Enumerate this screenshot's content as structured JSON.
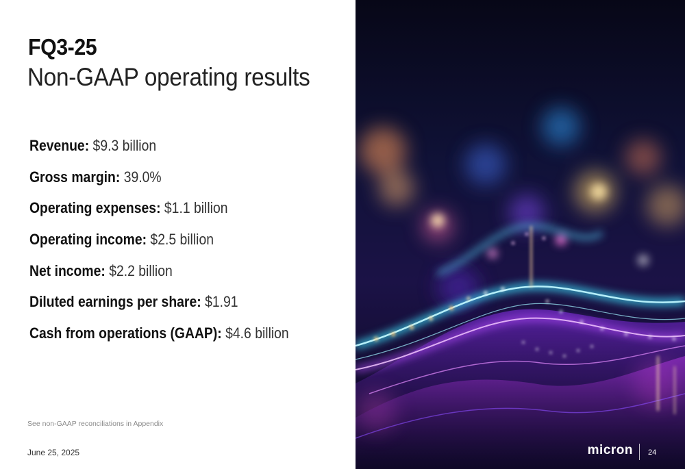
{
  "slide": {
    "title_bold": "FQ3-25",
    "title_light": "Non-GAAP operating results",
    "metrics": [
      {
        "label": "Revenue:",
        "value": "$9.3 billion"
      },
      {
        "label": "Gross margin:",
        "value": "39.0%"
      },
      {
        "label": "Operating expenses:",
        "value": "$1.1 billion"
      },
      {
        "label": "Operating income:",
        "value": "$2.5 billion"
      },
      {
        "label": "Net income:",
        "value": "$2.2 billion"
      },
      {
        "label": "Diluted earnings per share:",
        "value": "$1.91"
      },
      {
        "label": "Cash from operations (GAAP):",
        "value": "$4.6 billion"
      }
    ],
    "footnote": "See non-GAAP reconciliations in Appendix",
    "date": "June 25, 2025",
    "brand": "micron",
    "page_number": "24"
  },
  "colors": {
    "background_dark": "#0a0a22",
    "accent_cyan": "#3ee6ff",
    "accent_magenta": "#c23cff",
    "accent_orange": "#ffb060"
  }
}
